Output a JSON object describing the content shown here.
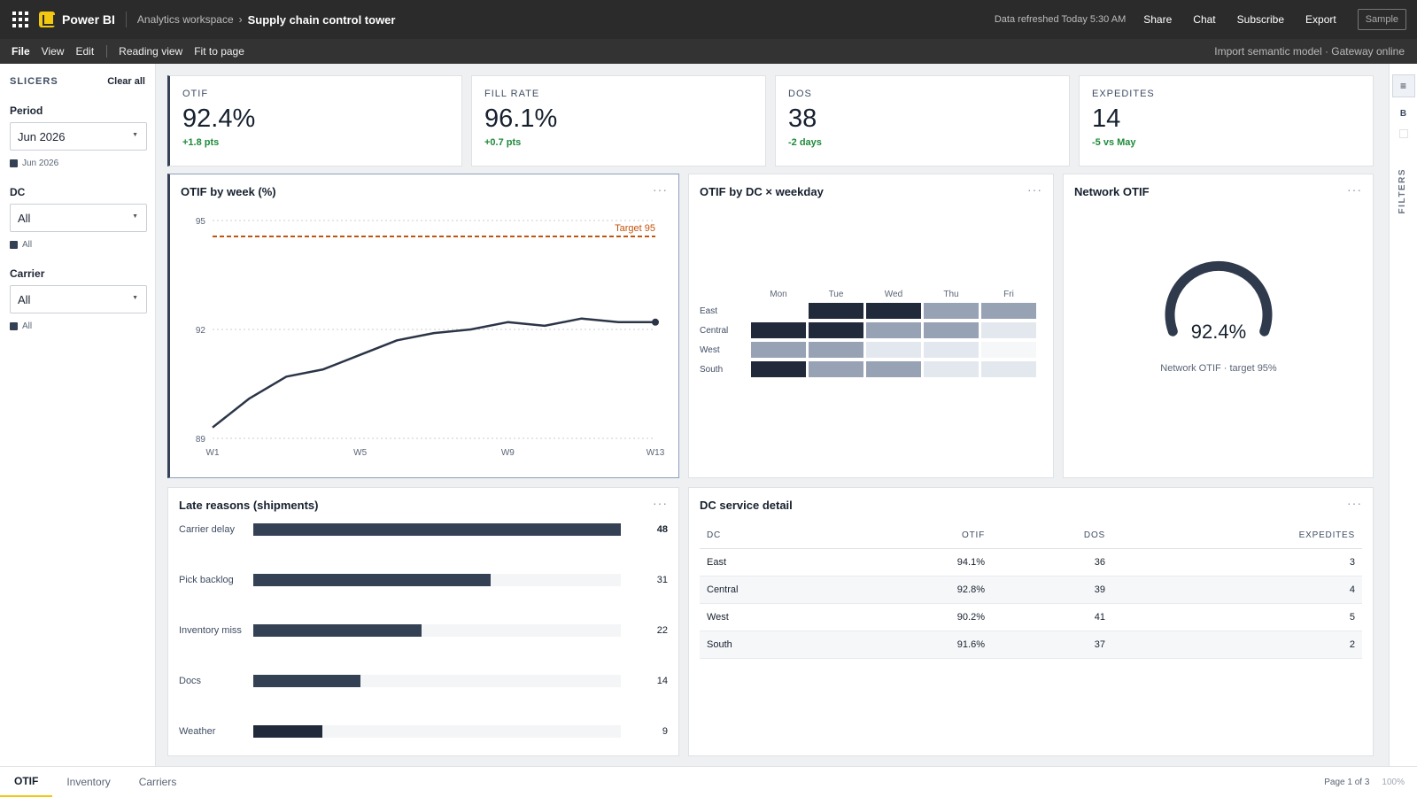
{
  "app": {
    "brand": "Power BI",
    "workspace": "Analytics workspace",
    "report_title": "Supply chain control tower",
    "refresh": "Data refreshed Today 5:30 AM",
    "actions": {
      "share": "Share",
      "chat": "Chat",
      "subscribe": "Subscribe",
      "export": "Export",
      "sample": "Sample"
    }
  },
  "menu": {
    "file": "File",
    "view": "View",
    "edit": "Edit",
    "reading_view": "Reading view",
    "fit": "Fit to page",
    "status": "Import semantic model · Gateway online"
  },
  "slicers": {
    "title": "SLICERS",
    "clear": "Clear all",
    "items": [
      {
        "label": "Period",
        "value": "Jun 2026",
        "chip": "Jun 2026"
      },
      {
        "label": "DC",
        "value": "All",
        "chip": "All"
      },
      {
        "label": "Carrier",
        "value": "All",
        "chip": "All"
      }
    ]
  },
  "kpis": [
    {
      "label": "OTIF",
      "value": "92.4%",
      "delta": "+1.8 pts"
    },
    {
      "label": "FILL RATE",
      "value": "96.1%",
      "delta": "+0.7 pts"
    },
    {
      "label": "DOS",
      "value": "38",
      "delta": "-2 days"
    },
    {
      "label": "EXPEDITES",
      "value": "14",
      "delta": "-5 vs May"
    }
  ],
  "visuals": {
    "line_title": "OTIF by week (%)",
    "heatmap_title": "OTIF by DC × weekday",
    "gauge_title": "Network OTIF",
    "bars_title": "Late reasons (shipments)",
    "table_title": "DC service detail",
    "more": "···"
  },
  "chart_data": [
    {
      "type": "line",
      "title": "OTIF by week (%)",
      "x": [
        "W1",
        "W2",
        "W3",
        "W4",
        "W5",
        "W6",
        "W7",
        "W8",
        "W9",
        "W10",
        "W11",
        "W12",
        "W13"
      ],
      "x_tick_labels": [
        "W1",
        "W5",
        "W9",
        "W13"
      ],
      "series": [
        {
          "values": [
            89.3,
            90.1,
            90.7,
            90.9,
            91.3,
            91.7,
            91.9,
            92.0,
            92.2,
            92.1,
            92.3,
            92.2,
            92.2
          ]
        }
      ],
      "ylim": [
        89,
        95
      ],
      "y_ticks": [
        89,
        92,
        95
      ],
      "target": {
        "value": 95,
        "label": "Target 95"
      },
      "grid": true
    },
    {
      "type": "heatmap",
      "title": "OTIF by DC × weekday",
      "columns": [
        "Mon",
        "Tue",
        "Wed",
        "Thu",
        "Fri"
      ],
      "rows": [
        "East",
        "Central",
        "West",
        "South"
      ],
      "values": [
        [
          5,
          4,
          4,
          2,
          2
        ],
        [
          4,
          4,
          2,
          2,
          1
        ],
        [
          2,
          2,
          1,
          1,
          0
        ],
        [
          4,
          2,
          2,
          1,
          1
        ]
      ],
      "colors": [
        "#f6f7f9",
        "#e3e7ee",
        "#97a2b5",
        "#344054",
        "#212a3a"
      ]
    },
    {
      "type": "gauge",
      "title": "Network OTIF",
      "value": 92.4,
      "display": "92.4%",
      "caption": "Network OTIF · target 95%"
    },
    {
      "type": "bar",
      "title": "Late reasons (shipments)",
      "categories": [
        "Carrier delay",
        "Pick backlog",
        "Inventory miss",
        "Docs",
        "Weather"
      ],
      "values": [
        48,
        31,
        22,
        14,
        9
      ],
      "xlim": [
        0,
        48
      ]
    },
    {
      "type": "table",
      "title": "DC service detail",
      "columns": [
        "DC",
        "OTIF",
        "DOS",
        "EXPEDITES"
      ],
      "rows": [
        [
          "East",
          "94.1%",
          "36",
          "3"
        ],
        [
          "Central",
          "92.8%",
          "39",
          "4"
        ],
        [
          "West",
          "90.2%",
          "41",
          "5"
        ],
        [
          "South",
          "91.6%",
          "37",
          "2"
        ]
      ]
    }
  ],
  "rightrail": {
    "b": "B",
    "filters": "FILTERS"
  },
  "pages": {
    "tabs": [
      "OTIF",
      "Inventory",
      "Carriers"
    ],
    "info": "Page 1 of 3",
    "zoom": "100%"
  },
  "colors": {
    "accent": "#f2c811",
    "navy": "#344054",
    "target": "#c0540f",
    "positive": "#1f8a3a"
  }
}
